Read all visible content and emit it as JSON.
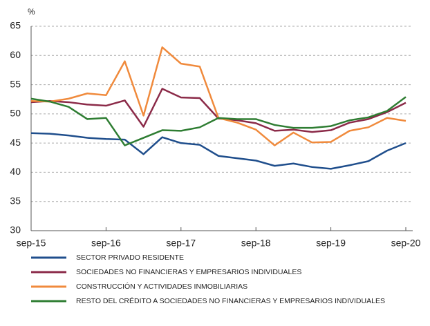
{
  "chart_data": {
    "type": "line",
    "y_label": "%",
    "categories": [
      "sep-15",
      null,
      null,
      null,
      "sep-16",
      null,
      null,
      null,
      "sep-17",
      null,
      null,
      null,
      "sep-18",
      null,
      null,
      null,
      "sep-19",
      null,
      null,
      null,
      "sep-20"
    ],
    "ylim": [
      30,
      65
    ],
    "yticks": [
      30,
      35,
      40,
      45,
      50,
      55,
      60,
      65
    ],
    "grid": true,
    "series": [
      {
        "name": "SECTOR PRIVADO RESIDENTE",
        "color": "#1f4e8c",
        "values": [
          46.7,
          46.6,
          46.3,
          45.9,
          45.7,
          45.6,
          43.1,
          46.0,
          45.0,
          44.7,
          42.8,
          42.4,
          42.0,
          41.1,
          41.5,
          40.9,
          40.6,
          41.2,
          41.9,
          43.7,
          45.0
        ]
      },
      {
        "name": "SOCIEDADES NO FINANCIERAS Y EMPRESARIOS INDIVIDUALES",
        "color": "#8b2a48",
        "values": [
          52.0,
          52.2,
          52.0,
          51.6,
          51.4,
          52.3,
          47.8,
          54.3,
          52.8,
          52.7,
          49.2,
          48.9,
          48.4,
          47.1,
          47.3,
          46.9,
          47.2,
          48.5,
          49.1,
          50.3,
          51.9
        ]
      },
      {
        "name": "CONSTRUCCIÓN Y ACTIVIDADES INMOBILIARIAS",
        "color": "#f08a3c",
        "values": [
          52.2,
          52.1,
          52.6,
          53.5,
          53.2,
          59.0,
          49.7,
          61.4,
          58.6,
          58.1,
          49.3,
          48.5,
          47.3,
          44.6,
          46.8,
          45.1,
          45.2,
          47.1,
          47.7,
          49.3,
          48.8
        ]
      },
      {
        "name": "RESTO DEL CRÉDITO A SOCIEDADES NO FINANCIERAS Y EMPRESARIOS INDIVIDUALES",
        "color": "#2e7d32",
        "values": [
          52.6,
          52.1,
          51.2,
          49.1,
          49.3,
          44.6,
          45.9,
          47.2,
          47.1,
          47.7,
          49.3,
          49.1,
          49.1,
          48.1,
          47.6,
          47.6,
          47.9,
          48.9,
          49.4,
          50.5,
          52.9
        ]
      }
    ]
  }
}
